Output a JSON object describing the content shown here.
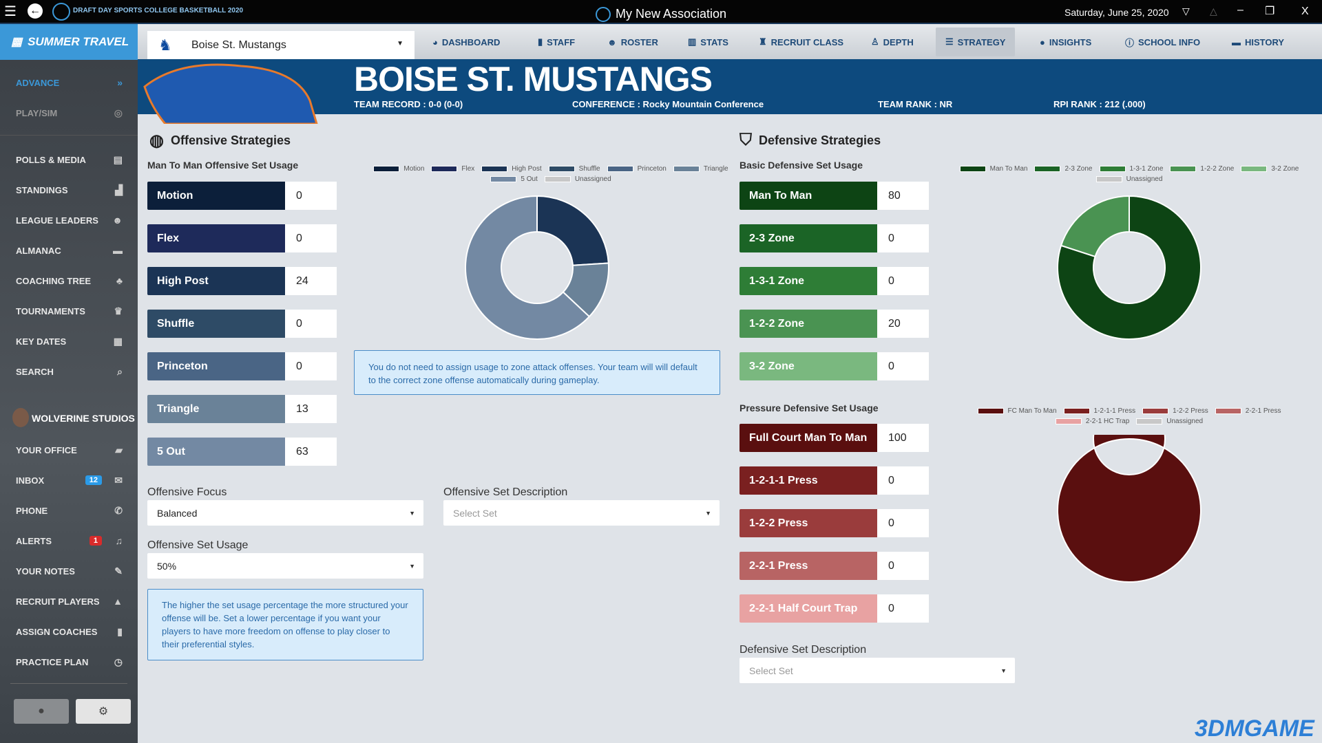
{
  "window": {
    "logo_text": "DRAFT DAY SPORTS COLLEGE BASKETBALL 2020",
    "association": "My New Association",
    "date": "Saturday, June 25, 2020",
    "controls": [
      "▽",
      "△",
      "–",
      "❐",
      "X"
    ]
  },
  "sidebar": {
    "phase": "SUMMER TRAVEL",
    "advance": "ADVANCE",
    "play_sim": "PLAY/SIM",
    "items": [
      {
        "label": "POLLS & MEDIA",
        "icon": "newspaper-icon"
      },
      {
        "label": "STANDINGS",
        "icon": "bar-signal-icon"
      },
      {
        "label": "LEAGUE LEADERS",
        "icon": "users-icon"
      },
      {
        "label": "ALMANAC",
        "icon": "archive-icon"
      },
      {
        "label": "COACHING TREE",
        "icon": "tree-icon"
      },
      {
        "label": "TOURNAMENTS",
        "icon": "trophy-icon"
      },
      {
        "label": "KEY DATES",
        "icon": "calendar-icon"
      },
      {
        "label": "SEARCH",
        "icon": "search-icon"
      }
    ],
    "user": "WOLVERINE STUDIOS",
    "user_items": [
      {
        "label": "YOUR OFFICE",
        "icon": "briefcase-icon"
      },
      {
        "label": "INBOX",
        "icon": "envelope-icon",
        "badge": "12"
      },
      {
        "label": "PHONE",
        "icon": "phone-icon"
      },
      {
        "label": "ALERTS",
        "icon": "bell-icon",
        "badge": "1"
      },
      {
        "label": "YOUR NOTES",
        "icon": "edit-icon"
      },
      {
        "label": "RECRUIT PLAYERS",
        "icon": "road-icon"
      },
      {
        "label": "ASSIGN COACHES",
        "icon": "clipboard-icon"
      },
      {
        "label": "PRACTICE PLAN",
        "icon": "stopwatch-icon"
      }
    ]
  },
  "nav": {
    "team": "Boise St. Mustangs",
    "tabs": [
      {
        "label": "DASHBOARD",
        "icon": "gauge-icon"
      },
      {
        "label": "STAFF",
        "icon": "clipboard-icon"
      },
      {
        "label": "ROSTER",
        "icon": "users-icon"
      },
      {
        "label": "STATS",
        "icon": "chart-icon"
      },
      {
        "label": "RECRUIT CLASS",
        "icon": "graduate-icon"
      },
      {
        "label": "DEPTH",
        "icon": "sitemap-icon"
      },
      {
        "label": "STRATEGY",
        "icon": "sliders-icon",
        "active": true
      },
      {
        "label": "INSIGHTS",
        "icon": "lightbulb-icon"
      },
      {
        "label": "SCHOOL INFO",
        "icon": "info-icon"
      },
      {
        "label": "HISTORY",
        "icon": "archive-icon"
      }
    ]
  },
  "header": {
    "title": "BOISE ST. MUSTANGS",
    "record": "TEAM RECORD : 0-0 (0-0)",
    "conference": "CONFERENCE : Rocky Mountain Conference",
    "rank": "TEAM RANK : NR",
    "rpi": "RPI RANK : 212 (.000)"
  },
  "offense": {
    "title": "Offensive Strategies",
    "usage_label": "Man To Man Offensive Set Usage",
    "zone_note": "You do not need to assign usage to zone attack offenses. Your team will will default to the correct zone offense automatically during gameplay.",
    "focus_label": "Offensive Focus",
    "focus_value": "Balanced",
    "desc_label": "Offensive Set Description",
    "desc_placeholder": "Select Set",
    "set_usage_label": "Offensive Set Usage",
    "set_usage_value": "50%",
    "set_usage_note": "The higher the set usage percentage the more structured your offense will be. Set a lower percentage if you want your players to have more freedom on offense to play closer to their preferential styles."
  },
  "defense": {
    "title": "Defensive Strategies",
    "basic_label": "Basic Defensive Set Usage",
    "pressure_label": "Pressure Defensive Set Usage",
    "desc_label": "Defensive Set Description",
    "desc_placeholder": "Select Set"
  },
  "watermark": "3DMGAME",
  "chart_data": [
    {
      "type": "pie",
      "variant": "donut",
      "legend": "top",
      "categories": [
        "Motion",
        "Flex",
        "High Post",
        "Shuffle",
        "Princeton",
        "Triangle",
        "5 Out",
        "Unassigned"
      ],
      "values": [
        0,
        0,
        24,
        0,
        0,
        13,
        63,
        0
      ],
      "colors": [
        "#0c1f3a",
        "#1e2a5a",
        "#1b3455",
        "#2e4b66",
        "#4a6585",
        "#6a8298",
        "#7389a3",
        "#c8c8c8"
      ]
    },
    {
      "type": "pie",
      "variant": "donut",
      "legend": "top",
      "categories": [
        "Man To Man",
        "2-3 Zone",
        "1-3-1 Zone",
        "1-2-2 Zone",
        "3-2 Zone",
        "Unassigned"
      ],
      "values": [
        80,
        0,
        0,
        20,
        0,
        0
      ],
      "colors": [
        "#0d4414",
        "#1b6426",
        "#2e7d36",
        "#4a9352",
        "#7ab87f",
        "#c8c8c8"
      ]
    },
    {
      "type": "pie",
      "variant": "donut",
      "legend": "top",
      "categories": [
        "FC Man To Man",
        "1-2-1-1 Press",
        "1-2-2 Press",
        "2-2-1 Press",
        "2-2-1 HC Trap",
        "Unassigned"
      ],
      "labels": [
        "Full Court Man To Man",
        "1-2-1-1 Press",
        "1-2-2 Press",
        "2-2-1 Press",
        "2-2-1 Half Court Trap"
      ],
      "values": [
        100,
        0,
        0,
        0,
        0,
        0
      ],
      "colors": [
        "#5a0f0f",
        "#7a2020",
        "#9a3c3c",
        "#b86464",
        "#e8a2a2",
        "#c8c8c8"
      ]
    }
  ]
}
